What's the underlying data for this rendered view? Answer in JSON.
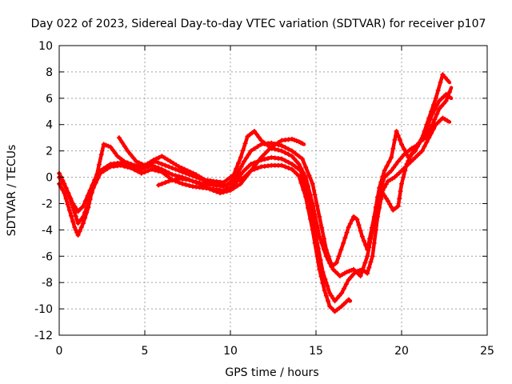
{
  "chart_data": {
    "type": "scatter",
    "title": "Day 022 of 2023, Sidereal Day-to-day VTEC variation (SDTVAR) for receiver p107",
    "xlabel": "GPS time / hours",
    "ylabel": "SDTVAR / TECUs",
    "xlim": [
      0,
      25
    ],
    "ylim": [
      -12,
      10
    ],
    "xticks": [
      0,
      5,
      10,
      15,
      20,
      25
    ],
    "yticks": [
      -12,
      -10,
      -8,
      -6,
      -4,
      -2,
      0,
      2,
      4,
      6,
      8,
      10
    ],
    "grid": true,
    "marker": "plus",
    "color": "#ff0000",
    "series": [
      {
        "values": [
          [
            0.0,
            0.3
          ],
          [
            0.3,
            -0.5
          ],
          [
            0.6,
            -1.5
          ],
          [
            0.9,
            -2.7
          ],
          [
            1.1,
            -3.5
          ],
          [
            1.4,
            -3.0
          ],
          [
            1.7,
            -2.0
          ],
          [
            2.0,
            -0.8
          ],
          [
            2.4,
            0.3
          ],
          [
            3.0,
            0.8
          ],
          [
            3.6,
            0.9
          ],
          [
            4.2,
            0.7
          ],
          [
            4.8,
            0.3
          ],
          [
            5.4,
            0.6
          ],
          [
            6.0,
            0.4
          ],
          [
            6.6,
            -0.2
          ],
          [
            7.2,
            -0.5
          ],
          [
            7.8,
            -0.7
          ],
          [
            8.4,
            -0.8
          ],
          [
            9.0,
            -0.9
          ],
          [
            9.6,
            -1.0
          ],
          [
            10.0,
            -0.8
          ],
          [
            10.4,
            -0.3
          ],
          [
            10.8,
            0.0
          ],
          [
            11.2,
            0.5
          ],
          [
            11.8,
            0.8
          ],
          [
            12.4,
            0.9
          ],
          [
            13.0,
            0.9
          ],
          [
            13.6,
            0.6
          ],
          [
            14.0,
            0.1
          ],
          [
            14.4,
            -1.5
          ],
          [
            14.8,
            -4.0
          ],
          [
            15.2,
            -7.0
          ],
          [
            15.5,
            -8.6
          ],
          [
            15.8,
            -9.8
          ],
          [
            16.1,
            -10.2
          ],
          [
            16.5,
            -9.8
          ],
          [
            16.9,
            -9.3
          ],
          [
            17.0,
            -9.4
          ]
        ]
      },
      {
        "values": [
          [
            0.0,
            -0.5
          ],
          [
            0.3,
            -1.2
          ],
          [
            0.6,
            -2.5
          ],
          [
            0.9,
            -3.8
          ],
          [
            1.1,
            -4.4
          ],
          [
            1.4,
            -3.5
          ],
          [
            1.7,
            -2.3
          ],
          [
            2.0,
            -0.5
          ],
          [
            2.4,
            0.5
          ],
          [
            3.0,
            1.0
          ],
          [
            3.6,
            1.1
          ],
          [
            4.2,
            0.9
          ],
          [
            4.8,
            0.6
          ],
          [
            5.4,
            0.9
          ],
          [
            6.0,
            0.6
          ],
          [
            6.6,
            0.2
          ],
          [
            7.2,
            0.0
          ],
          [
            7.8,
            -0.3
          ],
          [
            8.4,
            -0.5
          ],
          [
            9.0,
            -0.6
          ],
          [
            9.6,
            -0.7
          ],
          [
            10.2,
            -0.4
          ],
          [
            10.8,
            0.5
          ],
          [
            11.2,
            1.0
          ],
          [
            11.8,
            1.3
          ],
          [
            12.4,
            1.5
          ],
          [
            13.0,
            1.4
          ],
          [
            13.6,
            1.0
          ],
          [
            14.1,
            0.5
          ],
          [
            14.6,
            -1.5
          ],
          [
            15.0,
            -4.5
          ],
          [
            15.4,
            -7.2
          ],
          [
            15.8,
            -8.8
          ],
          [
            16.1,
            -9.4
          ],
          [
            16.5,
            -8.8
          ],
          [
            16.9,
            -7.8
          ],
          [
            17.3,
            -7.2
          ],
          [
            17.7,
            -7.0
          ],
          [
            18.0,
            -7.3
          ],
          [
            18.3,
            -6.0
          ],
          [
            18.6,
            -3.0
          ],
          [
            18.9,
            -1.0
          ],
          [
            19.2,
            -0.3
          ],
          [
            19.6,
            0.0
          ],
          [
            20.0,
            0.5
          ],
          [
            20.4,
            1.0
          ],
          [
            20.8,
            1.5
          ],
          [
            21.2,
            2.0
          ],
          [
            21.6,
            3.0
          ],
          [
            22.0,
            4.0
          ],
          [
            22.4,
            4.5
          ],
          [
            22.8,
            4.2
          ]
        ]
      },
      {
        "values": [
          [
            0.0,
            0.0
          ],
          [
            0.4,
            -0.8
          ],
          [
            0.8,
            -2.0
          ],
          [
            1.1,
            -2.6
          ],
          [
            1.4,
            -2.2
          ],
          [
            1.8,
            -1.0
          ],
          [
            2.2,
            0.2
          ],
          [
            2.6,
            2.5
          ],
          [
            3.0,
            2.3
          ],
          [
            3.4,
            1.6
          ],
          [
            3.8,
            1.2
          ],
          [
            4.4,
            0.9
          ],
          [
            5.0,
            0.8
          ],
          [
            5.6,
            1.2
          ],
          [
            6.2,
            0.9
          ],
          [
            6.8,
            0.6
          ],
          [
            7.4,
            0.3
          ],
          [
            8.0,
            0.0
          ],
          [
            8.6,
            -0.3
          ],
          [
            9.2,
            -0.5
          ],
          [
            9.8,
            -0.6
          ],
          [
            10.3,
            0.0
          ],
          [
            10.8,
            1.2
          ],
          [
            11.2,
            2.0
          ],
          [
            11.8,
            2.5
          ],
          [
            12.4,
            2.6
          ],
          [
            13.0,
            2.4
          ],
          [
            13.6,
            2.0
          ],
          [
            14.2,
            1.4
          ],
          [
            14.8,
            -0.5
          ],
          [
            15.2,
            -3.0
          ],
          [
            15.6,
            -5.5
          ],
          [
            16.0,
            -7.0
          ],
          [
            16.4,
            -7.5
          ],
          [
            16.8,
            -7.2
          ],
          [
            17.2,
            -7.0
          ],
          [
            17.6,
            -7.5
          ],
          [
            18.0,
            -6.0
          ],
          [
            18.3,
            -4.0
          ],
          [
            18.6,
            -1.5
          ],
          [
            19.0,
            0.0
          ],
          [
            19.4,
            0.5
          ],
          [
            19.8,
            1.2
          ],
          [
            20.2,
            1.8
          ],
          [
            20.6,
            2.2
          ],
          [
            21.0,
            2.5
          ],
          [
            21.4,
            3.5
          ],
          [
            21.8,
            4.8
          ],
          [
            22.2,
            5.8
          ],
          [
            22.6,
            6.3
          ],
          [
            22.9,
            6.0
          ]
        ]
      },
      {
        "values": [
          [
            3.5,
            3.0
          ],
          [
            4.0,
            2.0
          ],
          [
            4.5,
            1.2
          ],
          [
            5.0,
            0.9
          ],
          [
            5.5,
            1.3
          ],
          [
            6.0,
            1.6
          ],
          [
            6.5,
            1.2
          ],
          [
            7.0,
            0.8
          ],
          [
            7.5,
            0.5
          ],
          [
            8.0,
            0.2
          ],
          [
            8.5,
            -0.2
          ],
          [
            9.0,
            -0.3
          ],
          [
            9.6,
            -0.4
          ],
          [
            10.2,
            0.2
          ],
          [
            10.6,
            1.5
          ],
          [
            11.0,
            3.1
          ],
          [
            11.4,
            3.5
          ],
          [
            11.8,
            2.8
          ],
          [
            12.4,
            2.2
          ],
          [
            13.0,
            2.0
          ],
          [
            13.6,
            1.6
          ],
          [
            14.0,
            1.0
          ],
          [
            14.4,
            0.0
          ],
          [
            14.8,
            -2.0
          ],
          [
            15.2,
            -4.5
          ],
          [
            15.6,
            -6.0
          ],
          [
            15.9,
            -6.8
          ],
          [
            16.2,
            -6.5
          ],
          [
            16.6,
            -5.0
          ],
          [
            16.9,
            -3.8
          ],
          [
            17.2,
            -3.0
          ],
          [
            17.4,
            -3.2
          ],
          [
            17.7,
            -4.5
          ],
          [
            18.0,
            -5.5
          ],
          [
            18.4,
            -3.0
          ],
          [
            18.7,
            -0.8
          ],
          [
            19.0,
            0.5
          ],
          [
            19.4,
            1.5
          ],
          [
            19.7,
            3.5
          ],
          [
            20.0,
            2.5
          ],
          [
            20.4,
            1.5
          ],
          [
            20.8,
            2.0
          ],
          [
            21.2,
            3.0
          ],
          [
            21.6,
            4.5
          ],
          [
            22.0,
            6.0
          ],
          [
            22.4,
            7.8
          ],
          [
            22.8,
            7.2
          ]
        ]
      },
      {
        "values": [
          [
            5.8,
            -0.6
          ],
          [
            6.4,
            -0.3
          ],
          [
            7.0,
            -0.1
          ],
          [
            7.6,
            -0.2
          ],
          [
            8.2,
            -0.5
          ],
          [
            8.8,
            -0.9
          ],
          [
            9.4,
            -1.2
          ],
          [
            10.0,
            -1.0
          ],
          [
            10.6,
            -0.5
          ],
          [
            11.2,
            0.5
          ],
          [
            11.8,
            1.5
          ],
          [
            12.4,
            2.3
          ],
          [
            13.0,
            2.8
          ],
          [
            13.6,
            2.9
          ],
          [
            14.0,
            2.7
          ],
          [
            14.3,
            2.5
          ]
        ]
      },
      {
        "values": [
          [
            18.6,
            -2.0
          ],
          [
            18.9,
            -1.2
          ],
          [
            19.2,
            -1.8
          ],
          [
            19.5,
            -2.5
          ],
          [
            19.8,
            -2.2
          ],
          [
            20.0,
            -0.5
          ],
          [
            20.3,
            1.0
          ],
          [
            20.6,
            1.8
          ],
          [
            21.0,
            2.6
          ],
          [
            21.4,
            3.0
          ],
          [
            21.8,
            4.0
          ],
          [
            22.2,
            5.2
          ],
          [
            22.6,
            5.8
          ],
          [
            22.9,
            6.8
          ]
        ]
      }
    ]
  }
}
